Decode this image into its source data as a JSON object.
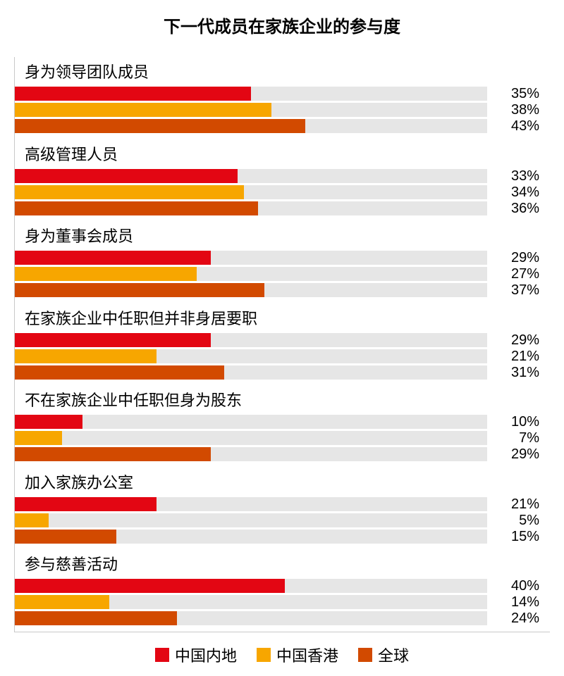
{
  "chart": {
    "type": "bar",
    "title": "下一代成员在家族企业的参与度",
    "title_fontsize": 24,
    "background_color": "#ffffff",
    "axis_color": "#c8c8c8",
    "track_color": "#e6e6e6",
    "value_suffix": "%",
    "value_fontsize": 20,
    "label_fontsize": 22,
    "bar_max_percent": 70,
    "series": [
      {
        "key": "mainland",
        "label": "中国内地",
        "color": "#e30613"
      },
      {
        "key": "hk",
        "label": "中国香港",
        "color": "#f7a600"
      },
      {
        "key": "global",
        "label": "全球",
        "color": "#d24a00"
      }
    ],
    "groups": [
      {
        "label": "身为领导团队成员",
        "values": {
          "mainland": 35,
          "hk": 38,
          "global": 43
        }
      },
      {
        "label": "高级管理人员",
        "values": {
          "mainland": 33,
          "hk": 34,
          "global": 36
        }
      },
      {
        "label": "身为董事会成员",
        "values": {
          "mainland": 29,
          "hk": 27,
          "global": 37
        }
      },
      {
        "label": "在家族企业中任职但并非身居要职",
        "values": {
          "mainland": 29,
          "hk": 21,
          "global": 31
        }
      },
      {
        "label": "不在家族企业中任职但身为股东",
        "values": {
          "mainland": 10,
          "hk": 7,
          "global": 29
        }
      },
      {
        "label": "加入家族办公室",
        "values": {
          "mainland": 21,
          "hk": 5,
          "global": 15
        }
      },
      {
        "label": "参与慈善活动",
        "values": {
          "mainland": 40,
          "hk": 14,
          "global": 24
        }
      }
    ],
    "legend_fontsize": 22
  }
}
